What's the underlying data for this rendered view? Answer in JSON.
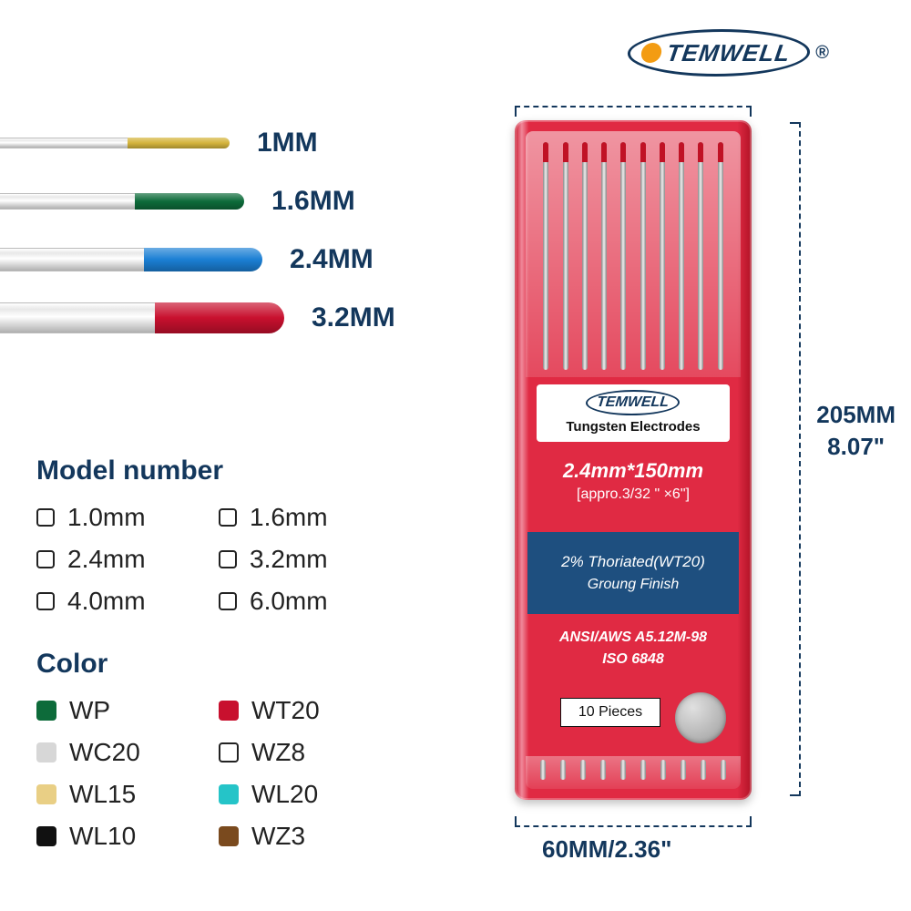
{
  "brand": "TEMWELL",
  "registered": "®",
  "rods": [
    {
      "label": "1MM",
      "body_w": 140,
      "tip_w": 112,
      "tip_color": "#d4b43c",
      "h": 12
    },
    {
      "label": "1.6MM",
      "body_w": 148,
      "tip_w": 120,
      "tip_color": "#0d6b3a",
      "h": 18
    },
    {
      "label": "2.4MM",
      "body_w": 158,
      "tip_w": 130,
      "tip_color": "#1b7fd4",
      "h": 26
    },
    {
      "label": "3.2MM",
      "body_w": 170,
      "tip_w": 142,
      "tip_color": "#c8102e",
      "h": 34
    }
  ],
  "model": {
    "title": "Model number",
    "options": [
      "1.0mm",
      "1.6mm",
      "2.4mm",
      "3.2mm",
      "4.0mm",
      "6.0mm"
    ]
  },
  "colors": {
    "title": "Color",
    "items": [
      {
        "label": "WP",
        "color": "#0d6b3a"
      },
      {
        "label": "WT20",
        "color": "#c8102e"
      },
      {
        "label": "WC20",
        "color": "#d7d7d7"
      },
      {
        "label": "WZ8",
        "color": "outline"
      },
      {
        "label": "WL15",
        "color": "#e9cf85"
      },
      {
        "label": "WL20",
        "color": "#25c4c8"
      },
      {
        "label": "WL10",
        "color": "#111111"
      },
      {
        "label": "WZ3",
        "color": "#7a4a1e"
      }
    ]
  },
  "package": {
    "height_mm": "205MM",
    "height_in": "8.07\"",
    "width": "60MM/2.36\"",
    "mini_sub": "Tungsten Electrodes",
    "size": "2.4mm*150mm",
    "approx": "[appro.3/32 \" ×6\"]",
    "thoriated": "2% Thoriated(WT20)",
    "finish": "Groung Finish",
    "std1": "ANSI/AWS A5.12M-98",
    "std2": "ISO 6848",
    "pieces": "10 Pieces",
    "needle_count": 10
  }
}
